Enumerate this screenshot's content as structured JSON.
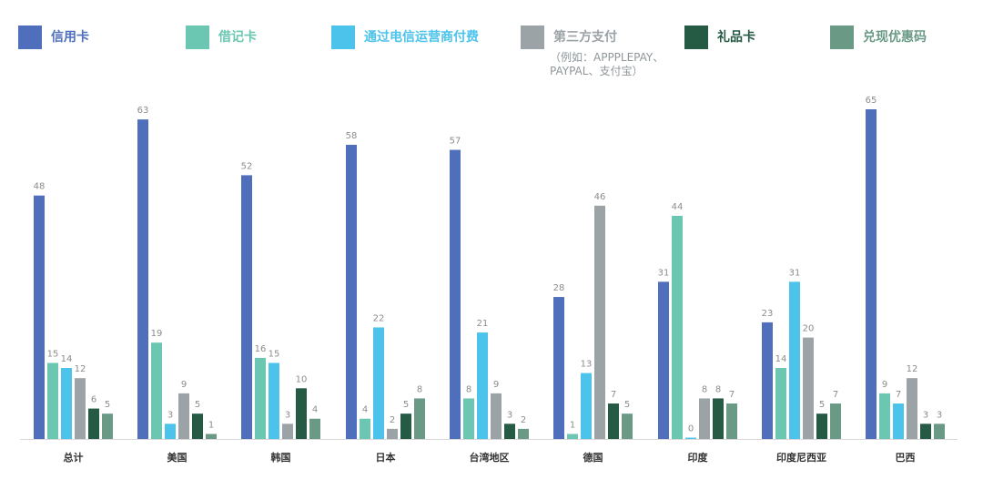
{
  "chart_data": {
    "type": "bar",
    "categories": [
      "总计",
      "美国",
      "韩国",
      "日本",
      "台湾地区",
      "德国",
      "印度",
      "印度尼西亚",
      "巴西"
    ],
    "series": [
      {
        "name": "信用卡",
        "color": "#4f6ebc",
        "values": [
          48,
          63,
          52,
          58,
          57,
          28,
          31,
          23,
          65
        ]
      },
      {
        "name": "借记卡",
        "color": "#6bc7b1",
        "values": [
          15,
          19,
          16,
          4,
          8,
          1,
          44,
          14,
          9
        ]
      },
      {
        "name": "通过电信运营商付费",
        "color": "#4cc3eb",
        "values": [
          14,
          3,
          15,
          22,
          21,
          13,
          0,
          31,
          7
        ]
      },
      {
        "name": "第三方支付",
        "color": "#9ba3a7",
        "values": [
          12,
          9,
          3,
          2,
          9,
          46,
          8,
          20,
          12
        ]
      },
      {
        "name": "礼品卡",
        "color": "#255a45",
        "values": [
          6,
          5,
          10,
          5,
          3,
          7,
          8,
          5,
          3
        ]
      },
      {
        "name": "兑现优惠码",
        "color": "#6a9a86",
        "values": [
          5,
          1,
          4,
          8,
          2,
          5,
          7,
          7,
          3
        ]
      }
    ],
    "ylim": [
      0,
      65
    ],
    "grid": false,
    "legend_position": "top"
  },
  "legend_note": [
    "（例如：APPPLEPAY、",
    "PAYPAL、支付宝）"
  ]
}
